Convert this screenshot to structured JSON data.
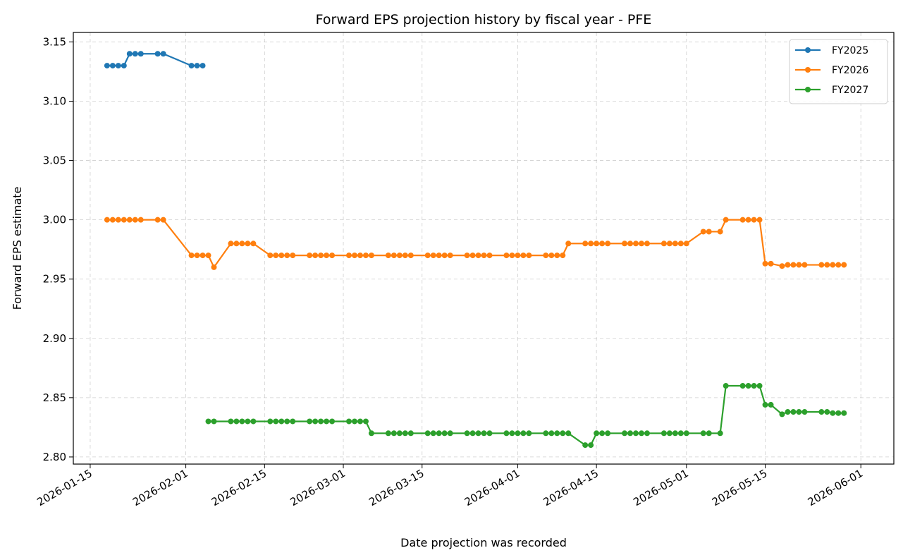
{
  "chart_data": {
    "type": "line",
    "title": "Forward EPS projection history by fiscal year - PFE",
    "xlabel": "Date projection was recorded",
    "ylabel": "Forward EPS estimate",
    "xlim": [
      "2026-01-12",
      "2026-06-04"
    ],
    "ylim": [
      2.794,
      3.158
    ],
    "grid": true,
    "legend": "top-right",
    "x_ticks": [
      "2026-01-15",
      "2026-02-01",
      "2026-02-15",
      "2026-03-01",
      "2026-03-15",
      "2026-04-01",
      "2026-04-15",
      "2026-05-01",
      "2026-05-15",
      "2026-06-01"
    ],
    "y_ticks": [
      "2.80",
      "2.85",
      "2.90",
      "2.95",
      "3.00",
      "3.05",
      "3.10",
      "3.15"
    ],
    "series": [
      {
        "name": "FY2025",
        "color": "#1f77b4",
        "points": [
          [
            "2026-01-18",
            3.13
          ],
          [
            "2026-01-19",
            3.13
          ],
          [
            "2026-01-20",
            3.13
          ],
          [
            "2026-01-21",
            3.13
          ],
          [
            "2026-01-22",
            3.14
          ],
          [
            "2026-01-23",
            3.14
          ],
          [
            "2026-01-24",
            3.14
          ],
          [
            "2026-01-27",
            3.14
          ],
          [
            "2026-01-28",
            3.14
          ],
          [
            "2026-02-02",
            3.13
          ],
          [
            "2026-02-03",
            3.13
          ],
          [
            "2026-02-04",
            3.13
          ]
        ]
      },
      {
        "name": "FY2026",
        "color": "#ff7f0e",
        "points": [
          [
            "2026-01-18",
            3.0
          ],
          [
            "2026-01-19",
            3.0
          ],
          [
            "2026-01-20",
            3.0
          ],
          [
            "2026-01-21",
            3.0
          ],
          [
            "2026-01-22",
            3.0
          ],
          [
            "2026-01-23",
            3.0
          ],
          [
            "2026-01-24",
            3.0
          ],
          [
            "2026-01-27",
            3.0
          ],
          [
            "2026-01-28",
            3.0
          ],
          [
            "2026-02-02",
            2.97
          ],
          [
            "2026-02-03",
            2.97
          ],
          [
            "2026-02-04",
            2.97
          ],
          [
            "2026-02-05",
            2.97
          ],
          [
            "2026-02-06",
            2.96
          ],
          [
            "2026-02-09",
            2.98
          ],
          [
            "2026-02-10",
            2.98
          ],
          [
            "2026-02-11",
            2.98
          ],
          [
            "2026-02-12",
            2.98
          ],
          [
            "2026-02-13",
            2.98
          ],
          [
            "2026-02-16",
            2.97
          ],
          [
            "2026-02-17",
            2.97
          ],
          [
            "2026-02-18",
            2.97
          ],
          [
            "2026-02-19",
            2.97
          ],
          [
            "2026-02-20",
            2.97
          ],
          [
            "2026-02-23",
            2.97
          ],
          [
            "2026-02-24",
            2.97
          ],
          [
            "2026-02-25",
            2.97
          ],
          [
            "2026-02-26",
            2.97
          ],
          [
            "2026-02-27",
            2.97
          ],
          [
            "2026-03-02",
            2.97
          ],
          [
            "2026-03-03",
            2.97
          ],
          [
            "2026-03-04",
            2.97
          ],
          [
            "2026-03-05",
            2.97
          ],
          [
            "2026-03-06",
            2.97
          ],
          [
            "2026-03-09",
            2.97
          ],
          [
            "2026-03-10",
            2.97
          ],
          [
            "2026-03-11",
            2.97
          ],
          [
            "2026-03-12",
            2.97
          ],
          [
            "2026-03-13",
            2.97
          ],
          [
            "2026-03-16",
            2.97
          ],
          [
            "2026-03-17",
            2.97
          ],
          [
            "2026-03-18",
            2.97
          ],
          [
            "2026-03-19",
            2.97
          ],
          [
            "2026-03-20",
            2.97
          ],
          [
            "2026-03-23",
            2.97
          ],
          [
            "2026-03-24",
            2.97
          ],
          [
            "2026-03-25",
            2.97
          ],
          [
            "2026-03-26",
            2.97
          ],
          [
            "2026-03-27",
            2.97
          ],
          [
            "2026-03-30",
            2.97
          ],
          [
            "2026-03-31",
            2.97
          ],
          [
            "2026-04-01",
            2.97
          ],
          [
            "2026-04-02",
            2.97
          ],
          [
            "2026-04-03",
            2.97
          ],
          [
            "2026-04-06",
            2.97
          ],
          [
            "2026-04-07",
            2.97
          ],
          [
            "2026-04-08",
            2.97
          ],
          [
            "2026-04-09",
            2.97
          ],
          [
            "2026-04-10",
            2.98
          ],
          [
            "2026-04-13",
            2.98
          ],
          [
            "2026-04-14",
            2.98
          ],
          [
            "2026-04-15",
            2.98
          ],
          [
            "2026-04-16",
            2.98
          ],
          [
            "2026-04-17",
            2.98
          ],
          [
            "2026-04-20",
            2.98
          ],
          [
            "2026-04-21",
            2.98
          ],
          [
            "2026-04-22",
            2.98
          ],
          [
            "2026-04-23",
            2.98
          ],
          [
            "2026-04-24",
            2.98
          ],
          [
            "2026-04-27",
            2.98
          ],
          [
            "2026-04-28",
            2.98
          ],
          [
            "2026-04-29",
            2.98
          ],
          [
            "2026-04-30",
            2.98
          ],
          [
            "2026-05-01",
            2.98
          ],
          [
            "2026-05-04",
            2.99
          ],
          [
            "2026-05-05",
            2.99
          ],
          [
            "2026-05-07",
            2.99
          ],
          [
            "2026-05-08",
            3.0
          ],
          [
            "2026-05-11",
            3.0
          ],
          [
            "2026-05-12",
            3.0
          ],
          [
            "2026-05-13",
            3.0
          ],
          [
            "2026-05-14",
            3.0
          ],
          [
            "2026-05-15",
            2.963
          ],
          [
            "2026-05-16",
            2.963
          ],
          [
            "2026-05-18",
            2.961
          ],
          [
            "2026-05-19",
            2.962
          ],
          [
            "2026-05-20",
            2.962
          ],
          [
            "2026-05-21",
            2.962
          ],
          [
            "2026-05-22",
            2.962
          ],
          [
            "2026-05-25",
            2.962
          ],
          [
            "2026-05-26",
            2.962
          ],
          [
            "2026-05-27",
            2.962
          ],
          [
            "2026-05-28",
            2.962
          ],
          [
            "2026-05-29",
            2.962
          ]
        ]
      },
      {
        "name": "FY2027",
        "color": "#2ca02c",
        "points": [
          [
            "2026-02-05",
            2.83
          ],
          [
            "2026-02-06",
            2.83
          ],
          [
            "2026-02-09",
            2.83
          ],
          [
            "2026-02-10",
            2.83
          ],
          [
            "2026-02-11",
            2.83
          ],
          [
            "2026-02-12",
            2.83
          ],
          [
            "2026-02-13",
            2.83
          ],
          [
            "2026-02-16",
            2.83
          ],
          [
            "2026-02-17",
            2.83
          ],
          [
            "2026-02-18",
            2.83
          ],
          [
            "2026-02-19",
            2.83
          ],
          [
            "2026-02-20",
            2.83
          ],
          [
            "2026-02-23",
            2.83
          ],
          [
            "2026-02-24",
            2.83
          ],
          [
            "2026-02-25",
            2.83
          ],
          [
            "2026-02-26",
            2.83
          ],
          [
            "2026-02-27",
            2.83
          ],
          [
            "2026-03-02",
            2.83
          ],
          [
            "2026-03-03",
            2.83
          ],
          [
            "2026-03-04",
            2.83
          ],
          [
            "2026-03-05",
            2.83
          ],
          [
            "2026-03-06",
            2.82
          ],
          [
            "2026-03-09",
            2.82
          ],
          [
            "2026-03-10",
            2.82
          ],
          [
            "2026-03-11",
            2.82
          ],
          [
            "2026-03-12",
            2.82
          ],
          [
            "2026-03-13",
            2.82
          ],
          [
            "2026-03-16",
            2.82
          ],
          [
            "2026-03-17",
            2.82
          ],
          [
            "2026-03-18",
            2.82
          ],
          [
            "2026-03-19",
            2.82
          ],
          [
            "2026-03-20",
            2.82
          ],
          [
            "2026-03-23",
            2.82
          ],
          [
            "2026-03-24",
            2.82
          ],
          [
            "2026-03-25",
            2.82
          ],
          [
            "2026-03-26",
            2.82
          ],
          [
            "2026-03-27",
            2.82
          ],
          [
            "2026-03-30",
            2.82
          ],
          [
            "2026-03-31",
            2.82
          ],
          [
            "2026-04-01",
            2.82
          ],
          [
            "2026-04-02",
            2.82
          ],
          [
            "2026-04-03",
            2.82
          ],
          [
            "2026-04-06",
            2.82
          ],
          [
            "2026-04-07",
            2.82
          ],
          [
            "2026-04-08",
            2.82
          ],
          [
            "2026-04-09",
            2.82
          ],
          [
            "2026-04-10",
            2.82
          ],
          [
            "2026-04-13",
            2.81
          ],
          [
            "2026-04-14",
            2.81
          ],
          [
            "2026-04-15",
            2.82
          ],
          [
            "2026-04-16",
            2.82
          ],
          [
            "2026-04-17",
            2.82
          ],
          [
            "2026-04-20",
            2.82
          ],
          [
            "2026-04-21",
            2.82
          ],
          [
            "2026-04-22",
            2.82
          ],
          [
            "2026-04-23",
            2.82
          ],
          [
            "2026-04-24",
            2.82
          ],
          [
            "2026-04-27",
            2.82
          ],
          [
            "2026-04-28",
            2.82
          ],
          [
            "2026-04-29",
            2.82
          ],
          [
            "2026-04-30",
            2.82
          ],
          [
            "2026-05-01",
            2.82
          ],
          [
            "2026-05-04",
            2.82
          ],
          [
            "2026-05-05",
            2.82
          ],
          [
            "2026-05-07",
            2.82
          ],
          [
            "2026-05-08",
            2.86
          ],
          [
            "2026-05-11",
            2.86
          ],
          [
            "2026-05-12",
            2.86
          ],
          [
            "2026-05-13",
            2.86
          ],
          [
            "2026-05-14",
            2.86
          ],
          [
            "2026-05-15",
            2.844
          ],
          [
            "2026-05-16",
            2.844
          ],
          [
            "2026-05-18",
            2.836
          ],
          [
            "2026-05-19",
            2.838
          ],
          [
            "2026-05-20",
            2.838
          ],
          [
            "2026-05-21",
            2.838
          ],
          [
            "2026-05-22",
            2.838
          ],
          [
            "2026-05-25",
            2.838
          ],
          [
            "2026-05-26",
            2.838
          ],
          [
            "2026-05-27",
            2.837
          ],
          [
            "2026-05-28",
            2.837
          ],
          [
            "2026-05-29",
            2.837
          ]
        ]
      }
    ]
  }
}
